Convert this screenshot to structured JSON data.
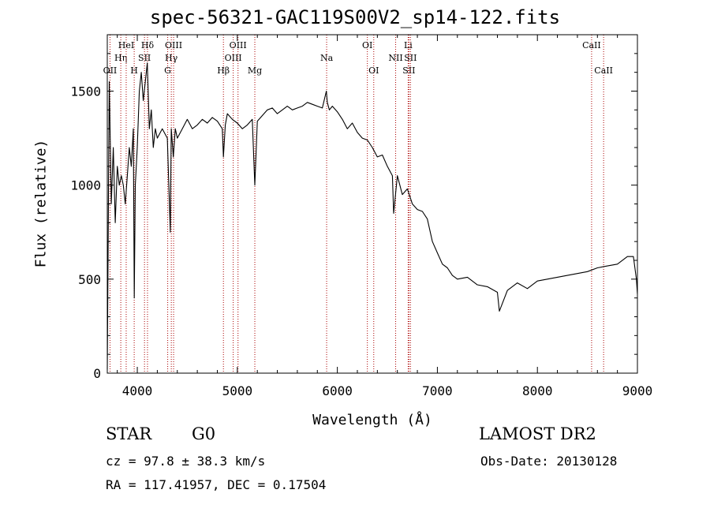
{
  "chart_data": {
    "type": "line",
    "title": "spec-56321-GAC119S00V2_sp14-122.fits",
    "xlabel": "Wavelength (Å)",
    "ylabel": "Flux (relative)",
    "xlim": [
      3700,
      9000
    ],
    "ylim": [
      0,
      1800
    ],
    "x_ticks": [
      4000,
      5000,
      6000,
      7000,
      8000,
      9000
    ],
    "y_ticks": [
      0,
      500,
      1000,
      1500
    ],
    "grid": false,
    "series": [
      {
        "x": [
          3700,
          3720,
          3740,
          3760,
          3780,
          3800,
          3820,
          3840,
          3860,
          3880,
          3900,
          3920,
          3940,
          3960,
          3970,
          3980,
          4000,
          4020,
          4040,
          4060,
          4080,
          4100,
          4120,
          4140,
          4160,
          4180,
          4200,
          4250,
          4300,
          4330,
          4340,
          4360,
          4380,
          4400,
          4450,
          4500,
          4550,
          4600,
          4650,
          4700,
          4750,
          4800,
          4850,
          4861,
          4880,
          4900,
          4950,
          5000,
          5050,
          5100,
          5150,
          5175,
          5200,
          5250,
          5300,
          5350,
          5400,
          5450,
          5500,
          5550,
          5600,
          5650,
          5700,
          5750,
          5800,
          5850,
          5890,
          5900,
          5920,
          5950,
          6000,
          6050,
          6100,
          6150,
          6200,
          6250,
          6300,
          6350,
          6400,
          6450,
          6500,
          6550,
          6563,
          6600,
          6650,
          6700,
          6750,
          6800,
          6850,
          6900,
          6950,
          7000,
          7050,
          7100,
          7150,
          7200,
          7300,
          7400,
          7500,
          7600,
          7620,
          7700,
          7800,
          7900,
          8000,
          8100,
          8200,
          8300,
          8400,
          8500,
          8600,
          8700,
          8800,
          8900,
          8960,
          8990,
          9000
        ],
        "y": [
          20,
          1550,
          900,
          1200,
          800,
          1100,
          1000,
          1050,
          1000,
          900,
          1050,
          1200,
          1100,
          1300,
          400,
          1000,
          1200,
          1500,
          1600,
          1450,
          1550,
          1650,
          1300,
          1400,
          1200,
          1300,
          1250,
          1300,
          1250,
          750,
          1300,
          1150,
          1300,
          1250,
          1300,
          1350,
          1300,
          1320,
          1350,
          1330,
          1360,
          1340,
          1300,
          1150,
          1320,
          1380,
          1350,
          1330,
          1300,
          1320,
          1350,
          1000,
          1340,
          1370,
          1400,
          1410,
          1380,
          1400,
          1420,
          1400,
          1410,
          1420,
          1440,
          1430,
          1420,
          1410,
          1500,
          1440,
          1400,
          1420,
          1390,
          1350,
          1300,
          1330,
          1280,
          1250,
          1240,
          1200,
          1150,
          1160,
          1100,
          1050,
          850,
          1050,
          950,
          980,
          900,
          870,
          860,
          820,
          700,
          640,
          580,
          560,
          520,
          500,
          510,
          470,
          460,
          430,
          330,
          440,
          480,
          450,
          490,
          500,
          510,
          520,
          530,
          540,
          560,
          570,
          580,
          620,
          620,
          500,
          420
        ]
      }
    ],
    "lines": [
      {
        "x": 3727,
        "top": "OII"
      },
      {
        "x": 3835,
        "top": "Hη"
      },
      {
        "x": 3889,
        "top": "HeI"
      },
      {
        "x": 3969,
        "top": "H"
      },
      {
        "x": 4072,
        "top": "SII"
      },
      {
        "x": 4102,
        "top": "Hδ"
      },
      {
        "x": 4304,
        "top": "G"
      },
      {
        "x": 4340,
        "top": "Hγ"
      },
      {
        "x": 4363,
        "top": "OIII"
      },
      {
        "x": 4861,
        "top": "Hβ"
      },
      {
        "x": 4959,
        "top": "OIII"
      },
      {
        "x": 5007,
        "top": "OIII"
      },
      {
        "x": 5175,
        "top": "Mg"
      },
      {
        "x": 5893,
        "top": "Na"
      },
      {
        "x": 6300,
        "top": "OI"
      },
      {
        "x": 6364,
        "top": "OI"
      },
      {
        "x": 6583,
        "top": "NII"
      },
      {
        "x": 6708,
        "top": "Li"
      },
      {
        "x": 6716,
        "top": "SII"
      },
      {
        "x": 6731,
        "top": "SII"
      },
      {
        "x": 8542,
        "top": "CaII"
      },
      {
        "x": 8662,
        "top": "CaII"
      }
    ],
    "line_color": "#aa0000",
    "series_color": "#000000"
  },
  "info": {
    "object_class": "STAR",
    "subclass": "G0",
    "survey": "LAMOST DR2",
    "cz": "cz = 97.8 ± 38.3 km/s",
    "obs_date": "Obs-Date: 20130128",
    "coords": "RA = 117.41957, DEC =    0.17504"
  }
}
